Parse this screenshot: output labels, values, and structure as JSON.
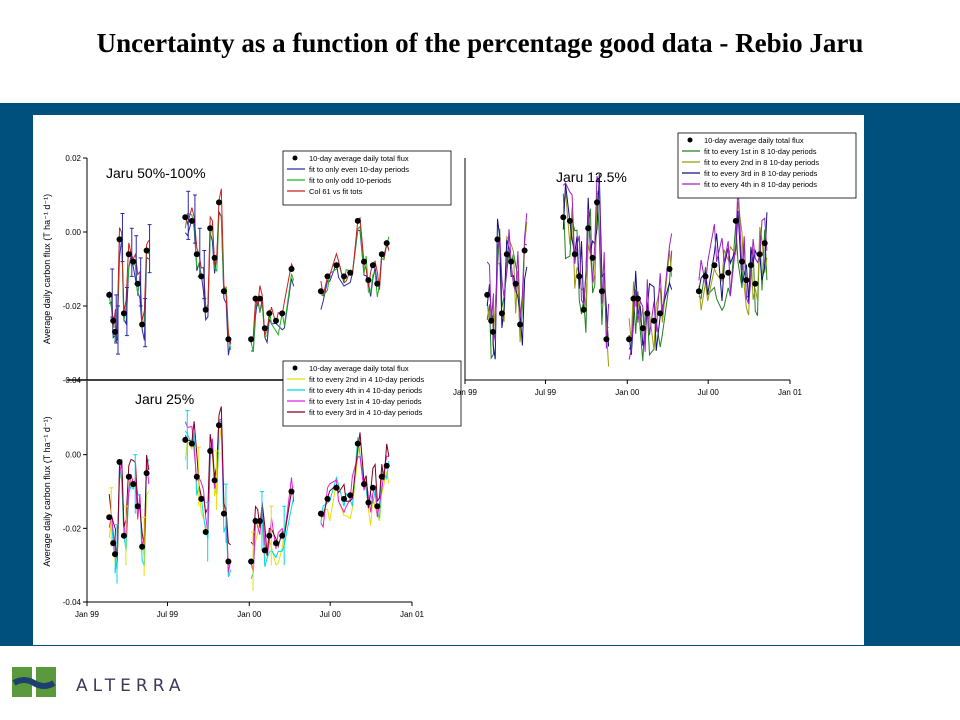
{
  "title": "Uncertainty as a function of the percentage good data - Rebio Jaru",
  "logo": {
    "text": "ALTERRA",
    "icon": "alterra-logo-icon",
    "colors": {
      "green": "#5b9a3c",
      "navy": "#1f3f6e"
    }
  },
  "colors": {
    "band": "#00507e",
    "panel": "#ffffff",
    "obs": "#000000"
  },
  "chart_data": [
    {
      "type": "line",
      "id": "c50",
      "label": "Jaru 50%-100%",
      "ylabel": "Average daily carbon flux (T ha⁻¹ d⁻¹)",
      "ylim": [
        -0.04,
        0.02
      ],
      "yticks": [
        "0.02",
        "0.00",
        "-0.02",
        "-0.04"
      ],
      "xticks": [],
      "legend": "top-right",
      "series": [
        {
          "name": "10-day average daily total flux",
          "kind": "obs",
          "color": "#000000"
        },
        {
          "name": "fit to only even 10-day periods",
          "color": "#2a2aa8"
        },
        {
          "name": "fit to only odd 10-periods",
          "color": "#22b022"
        },
        {
          "name": "Col 61 vs fit tots",
          "color": "#cc2020"
        }
      ]
    },
    {
      "type": "line",
      "id": "c25",
      "label": "Jaru 25%",
      "ylabel": "Average daily carbon flux (T ha⁻¹ d⁻¹)",
      "ylim": [
        -0.04,
        0.02
      ],
      "yticks": [
        "0.00",
        "-0.02",
        "-0.04"
      ],
      "xticks": [
        "Jan 99",
        "Jul 99",
        "Jan 00",
        "Jul 00",
        "Jan 01"
      ],
      "legend": "top-right",
      "series": [
        {
          "name": "10-day average daily total flux",
          "kind": "obs",
          "color": "#000000"
        },
        {
          "name": "fit to every 2nd in 4 10-day periods",
          "color": "#e8e000"
        },
        {
          "name": "fit to every 4th in 4 10-day periods",
          "color": "#00d8e8"
        },
        {
          "name": "fit to every 1st in 4 10-day periods",
          "color": "#e020e0"
        },
        {
          "name": "fit to every 3rd in 4 10-day periods",
          "color": "#800020"
        }
      ]
    },
    {
      "type": "line",
      "id": "c12",
      "label": "Jaru 12.5%",
      "ylim": [
        -0.04,
        0.02
      ],
      "yticks": [],
      "xticks": [
        "Jan 99",
        "Jul 99",
        "Jan 00",
        "Jul 00",
        "Jan 01"
      ],
      "legend": "top-right",
      "series": [
        {
          "name": "10-day average daily total flux",
          "kind": "obs",
          "color": "#000000"
        },
        {
          "name": "fit to every 1st  in 8 10-day periods",
          "color": "#208020"
        },
        {
          "name": "fit to every 2nd  in 8 10-day periods",
          "color": "#9a9a10"
        },
        {
          "name": "fit to every 3rd in 8 10-day periods",
          "color": "#101080"
        },
        {
          "name": "fit to every 4th in 8 10-day periods",
          "color": "#a020c0"
        }
      ]
    }
  ],
  "observations": [
    [
      "1999-02-20",
      -0.017
    ],
    [
      "1999-03-01",
      -0.024
    ],
    [
      "1999-03-05",
      -0.027
    ],
    [
      "1999-03-15",
      -0.002
    ],
    [
      "1999-03-25",
      -0.022
    ],
    [
      "1999-04-05",
      -0.006
    ],
    [
      "1999-04-15",
      -0.008
    ],
    [
      "1999-04-25",
      -0.014
    ],
    [
      "1999-05-05",
      -0.025
    ],
    [
      "1999-05-15",
      -0.005
    ],
    [
      "1999-08-10",
      0.004
    ],
    [
      "1999-08-25",
      0.003
    ],
    [
      "1999-09-05",
      -0.006
    ],
    [
      "1999-09-15",
      -0.012
    ],
    [
      "1999-09-25",
      -0.021
    ],
    [
      "1999-10-05",
      0.001
    ],
    [
      "1999-10-15",
      -0.007
    ],
    [
      "1999-10-25",
      0.008
    ],
    [
      "1999-11-05",
      -0.016
    ],
    [
      "1999-11-15",
      -0.029
    ],
    [
      "2000-01-05",
      -0.029
    ],
    [
      "2000-01-15",
      -0.018
    ],
    [
      "2000-01-25",
      -0.018
    ],
    [
      "2000-02-05",
      -0.026
    ],
    [
      "2000-02-15",
      -0.022
    ],
    [
      "2000-03-01",
      -0.024
    ],
    [
      "2000-03-15",
      -0.022
    ],
    [
      "2000-04-05",
      -0.01
    ],
    [
      "2000-06-10",
      -0.016
    ],
    [
      "2000-06-25",
      -0.012
    ],
    [
      "2000-07-15",
      -0.009
    ],
    [
      "2000-08-01",
      -0.012
    ],
    [
      "2000-08-15",
      -0.011
    ],
    [
      "2000-09-01",
      0.003
    ],
    [
      "2000-09-15",
      -0.008
    ],
    [
      "2000-09-25",
      -0.013
    ],
    [
      "2000-10-05",
      -0.009
    ],
    [
      "2000-10-15",
      -0.014
    ],
    [
      "2000-10-25",
      -0.006
    ],
    [
      "2000-11-05",
      -0.003
    ]
  ]
}
